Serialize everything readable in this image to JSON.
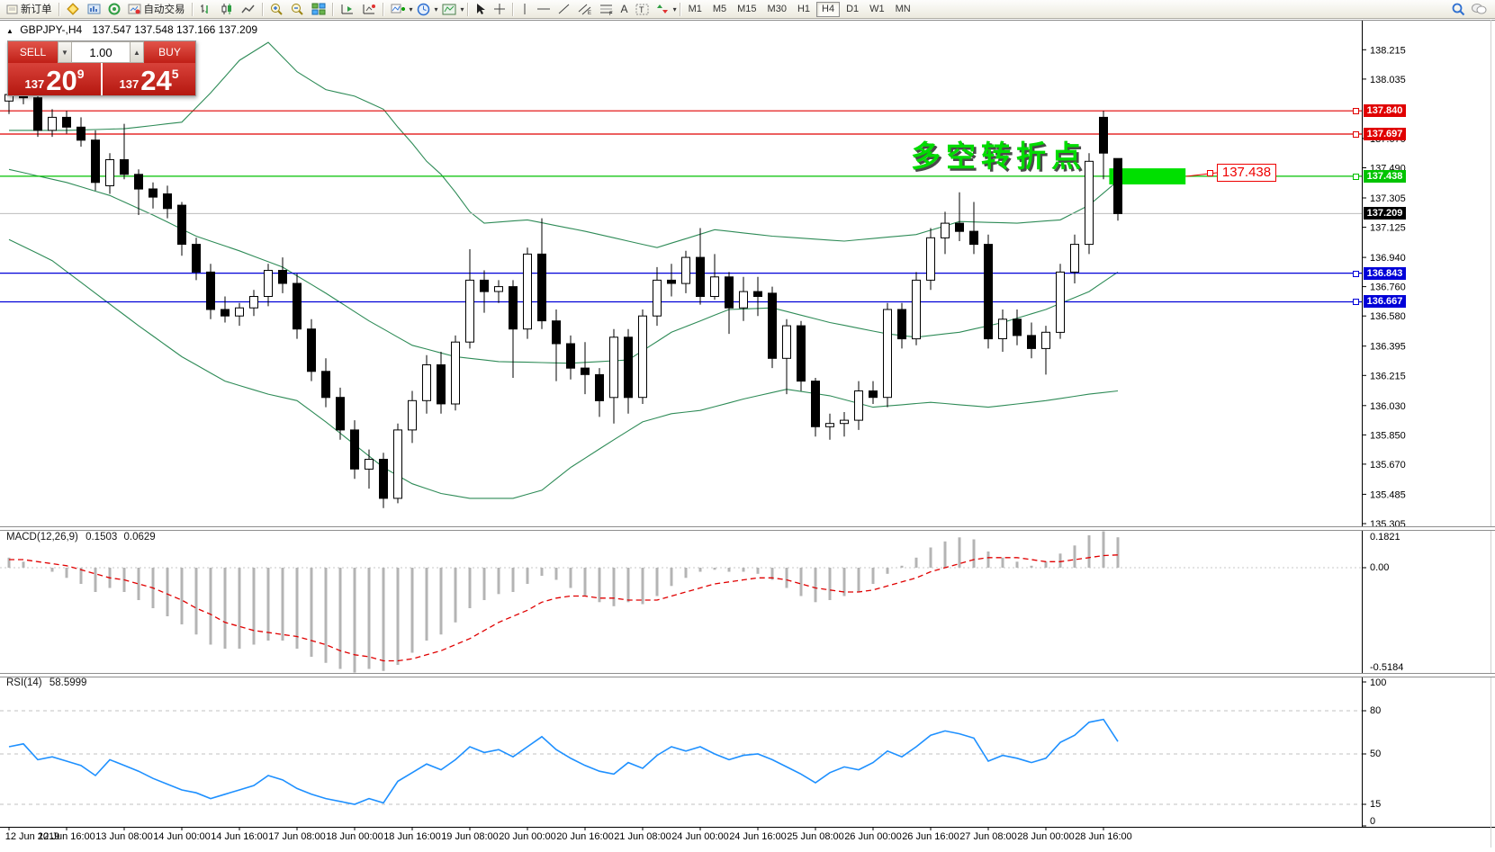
{
  "toolbar": {
    "new_order": "新订单",
    "auto_trading": "自动交易",
    "timeframes": [
      "M1",
      "M5",
      "M15",
      "M30",
      "H1",
      "H4",
      "D1",
      "W1",
      "MN"
    ],
    "active_timeframe": "H4"
  },
  "window": {
    "symbol_title": "GBPJPY-,H4",
    "ohlc_text": "137.547 137.548 137.166 137.209",
    "collapse_marker": "▲"
  },
  "trade_panel": {
    "sell_label": "SELL",
    "buy_label": "BUY",
    "volume": "1.00",
    "sell_price_prefix": "137",
    "sell_price_big": "20",
    "sell_price_sup": "9",
    "buy_price_prefix": "137",
    "buy_price_big": "24",
    "buy_price_sup": "5"
  },
  "annotation": {
    "text": "多空转折点",
    "color": "#00dc00"
  },
  "callout": {
    "text": "137.438",
    "color": "#ee0000"
  },
  "indicators": {
    "macd_label": "MACD(12,26,9)",
    "macd_main": "0.1503",
    "macd_signal": "0.0629",
    "rsi_label": "RSI(14)",
    "rsi_value": "58.5999"
  },
  "chart_data": {
    "type": "candlestick",
    "title": "GBPJPY-,H4",
    "ylim": [
      135.272,
      138.4
    ],
    "y_ticks": [
      "138.215",
      "138.035",
      "137.670",
      "137.490",
      "137.305",
      "137.125",
      "136.940",
      "136.760",
      "136.580",
      "136.395",
      "136.215",
      "136.030",
      "135.850",
      "135.670",
      "135.485",
      "135.305"
    ],
    "x_labels": [
      "12 Jun 2019",
      "12 Jun 16:00",
      "13 Jun 08:00",
      "14 Jun 00:00",
      "14 Jun 16:00",
      "17 Jun 08:00",
      "18 Jun 00:00",
      "18 Jun 16:00",
      "19 Jun 08:00",
      "20 Jun 00:00",
      "20 Jun 16:00",
      "21 Jun 08:00",
      "24 Jun 00:00",
      "24 Jun 16:00",
      "25 Jun 08:00",
      "26 Jun 00:00",
      "26 Jun 16:00",
      "27 Jun 08:00",
      "28 Jun 00:00",
      "28 Jun 16:00"
    ],
    "x_label_indices": [
      0,
      4,
      8,
      12,
      16,
      20,
      24,
      28,
      32,
      36,
      40,
      44,
      48,
      52,
      56,
      60,
      64,
      68,
      72,
      76
    ],
    "candles": [
      [
        137.9,
        137.98,
        137.82,
        137.94
      ],
      [
        137.94,
        138.05,
        137.88,
        137.92
      ],
      [
        137.92,
        138.08,
        137.68,
        137.72
      ],
      [
        137.72,
        137.85,
        137.68,
        137.8
      ],
      [
        137.8,
        137.84,
        137.7,
        137.74
      ],
      [
        137.74,
        137.8,
        137.62,
        137.66
      ],
      [
        137.66,
        137.72,
        137.35,
        137.4
      ],
      [
        137.38,
        137.58,
        137.33,
        137.54
      ],
      [
        137.54,
        137.76,
        137.42,
        137.45
      ],
      [
        137.45,
        137.48,
        137.2,
        137.36
      ],
      [
        137.36,
        137.4,
        137.24,
        137.31
      ],
      [
        137.33,
        137.38,
        137.18,
        137.24
      ],
      [
        137.26,
        137.28,
        136.95,
        137.02
      ],
      [
        137.02,
        137.06,
        136.8,
        136.85
      ],
      [
        136.85,
        136.9,
        136.56,
        136.62
      ],
      [
        136.62,
        136.7,
        136.54,
        136.58
      ],
      [
        136.58,
        136.66,
        136.52,
        136.63
      ],
      [
        136.63,
        136.74,
        136.58,
        136.7
      ],
      [
        136.7,
        136.9,
        136.64,
        136.86
      ],
      [
        136.86,
        136.94,
        136.72,
        136.78
      ],
      [
        136.78,
        136.84,
        136.44,
        136.5
      ],
      [
        136.5,
        136.56,
        136.18,
        136.24
      ],
      [
        136.24,
        136.32,
        136.02,
        136.08
      ],
      [
        136.08,
        136.14,
        135.82,
        135.88
      ],
      [
        135.88,
        135.94,
        135.58,
        135.64
      ],
      [
        135.64,
        135.76,
        135.52,
        135.7
      ],
      [
        135.7,
        135.74,
        135.4,
        135.46
      ],
      [
        135.46,
        135.92,
        135.43,
        135.88
      ],
      [
        135.88,
        136.12,
        135.8,
        136.06
      ],
      [
        136.06,
        136.34,
        135.98,
        136.28
      ],
      [
        136.28,
        136.36,
        135.98,
        136.04
      ],
      [
        136.04,
        136.46,
        136.0,
        136.42
      ],
      [
        136.42,
        136.99,
        136.38,
        136.8
      ],
      [
        136.8,
        136.86,
        136.6,
        136.73
      ],
      [
        136.73,
        136.8,
        136.66,
        136.76
      ],
      [
        136.76,
        136.8,
        136.2,
        136.5
      ],
      [
        136.5,
        137.0,
        136.44,
        136.96
      ],
      [
        136.96,
        137.18,
        136.5,
        136.55
      ],
      [
        136.55,
        136.62,
        136.18,
        136.41
      ],
      [
        136.41,
        136.46,
        136.19,
        136.26
      ],
      [
        136.26,
        136.42,
        136.1,
        136.22
      ],
      [
        136.22,
        136.26,
        135.96,
        136.06
      ],
      [
        136.08,
        136.5,
        135.92,
        136.45
      ],
      [
        136.45,
        136.5,
        135.98,
        136.08
      ],
      [
        136.08,
        136.62,
        136.04,
        136.58
      ],
      [
        136.58,
        136.88,
        136.52,
        136.8
      ],
      [
        136.8,
        136.9,
        136.7,
        136.78
      ],
      [
        136.78,
        136.98,
        136.72,
        136.94
      ],
      [
        136.94,
        137.12,
        136.65,
        136.7
      ],
      [
        136.7,
        136.96,
        136.68,
        136.82
      ],
      [
        136.82,
        136.85,
        136.47,
        136.63
      ],
      [
        136.63,
        136.82,
        136.55,
        136.73
      ],
      [
        136.73,
        136.82,
        136.58,
        136.7
      ],
      [
        136.72,
        136.76,
        136.26,
        136.32
      ],
      [
        136.32,
        136.56,
        136.1,
        136.52
      ],
      [
        136.52,
        136.55,
        136.12,
        136.18
      ],
      [
        136.18,
        136.2,
        135.84,
        135.9
      ],
      [
        135.9,
        135.98,
        135.82,
        135.92
      ],
      [
        135.92,
        135.99,
        135.84,
        135.94
      ],
      [
        135.94,
        136.18,
        135.88,
        136.12
      ],
      [
        136.12,
        136.18,
        136.04,
        136.08
      ],
      [
        136.08,
        136.66,
        136.02,
        136.62
      ],
      [
        136.62,
        136.66,
        136.38,
        136.44
      ],
      [
        136.44,
        136.85,
        136.4,
        136.8
      ],
      [
        136.8,
        137.12,
        136.74,
        137.06
      ],
      [
        137.06,
        137.22,
        136.96,
        137.15
      ],
      [
        137.15,
        137.34,
        137.04,
        137.1
      ],
      [
        137.1,
        137.28,
        136.96,
        137.02
      ],
      [
        137.02,
        137.08,
        136.38,
        136.44
      ],
      [
        136.44,
        136.62,
        136.36,
        136.56
      ],
      [
        136.56,
        136.62,
        136.4,
        136.46
      ],
      [
        136.46,
        136.54,
        136.32,
        136.38
      ],
      [
        136.38,
        136.52,
        136.22,
        136.48
      ],
      [
        136.48,
        136.9,
        136.44,
        136.85
      ],
      [
        136.85,
        137.08,
        136.78,
        137.02
      ],
      [
        137.02,
        137.58,
        136.96,
        137.53
      ],
      [
        137.8,
        137.84,
        137.42,
        137.58
      ],
      [
        137.547,
        137.548,
        137.166,
        137.209
      ]
    ],
    "bollinger": {
      "color": "#2E8B57",
      "upper": [
        [
          0,
          137.72
        ],
        [
          4,
          137.72
        ],
        [
          8,
          137.73
        ],
        [
          12,
          137.77
        ],
        [
          14,
          137.95
        ],
        [
          16,
          138.15
        ],
        [
          18,
          138.26
        ],
        [
          19,
          138.17
        ],
        [
          20,
          138.08
        ],
        [
          22,
          137.97
        ],
        [
          24,
          137.93
        ],
        [
          26,
          137.85
        ],
        [
          27,
          137.74
        ],
        [
          28,
          137.64
        ],
        [
          29,
          137.53
        ],
        [
          30,
          137.45
        ],
        [
          31,
          137.34
        ],
        [
          32,
          137.22
        ],
        [
          33,
          137.15
        ],
        [
          36,
          137.17
        ],
        [
          40,
          137.1
        ],
        [
          45,
          137.0
        ],
        [
          49,
          137.11
        ],
        [
          53,
          137.07
        ],
        [
          58,
          137.04
        ],
        [
          63,
          137.08
        ],
        [
          66,
          137.16
        ],
        [
          70,
          137.15
        ],
        [
          73,
          137.17
        ],
        [
          75,
          137.26
        ],
        [
          77,
          137.41
        ]
      ],
      "middle": [
        [
          0,
          137.48
        ],
        [
          4,
          137.4
        ],
        [
          7,
          137.32
        ],
        [
          10,
          137.2
        ],
        [
          13,
          137.07
        ],
        [
          16,
          136.98
        ],
        [
          19,
          136.88
        ],
        [
          22,
          136.72
        ],
        [
          25,
          136.55
        ],
        [
          28,
          136.4
        ],
        [
          31,
          136.33
        ],
        [
          34,
          136.3
        ],
        [
          39,
          136.29
        ],
        [
          43,
          136.31
        ],
        [
          46,
          136.48
        ],
        [
          50,
          136.62
        ],
        [
          53,
          136.63
        ],
        [
          57,
          136.54
        ],
        [
          61,
          136.47
        ],
        [
          63,
          136.45
        ],
        [
          66,
          136.48
        ],
        [
          69,
          136.54
        ],
        [
          72,
          136.62
        ],
        [
          75,
          136.73
        ],
        [
          77,
          136.85
        ]
      ],
      "lower": [
        [
          0,
          137.05
        ],
        [
          3,
          136.92
        ],
        [
          6,
          136.72
        ],
        [
          9,
          136.52
        ],
        [
          12,
          136.33
        ],
        [
          15,
          136.18
        ],
        [
          18,
          136.1
        ],
        [
          20,
          136.06
        ],
        [
          22,
          135.93
        ],
        [
          24,
          135.79
        ],
        [
          26,
          135.65
        ],
        [
          28,
          135.55
        ],
        [
          30,
          135.49
        ],
        [
          32,
          135.46
        ],
        [
          35,
          135.46
        ],
        [
          37,
          135.51
        ],
        [
          39,
          135.65
        ],
        [
          42,
          135.82
        ],
        [
          44,
          135.93
        ],
        [
          46,
          135.98
        ],
        [
          48,
          136.0
        ],
        [
          51,
          136.07
        ],
        [
          54,
          136.13
        ],
        [
          57,
          136.09
        ],
        [
          60,
          136.02
        ],
        [
          64,
          136.05
        ],
        [
          68,
          136.02
        ],
        [
          72,
          136.06
        ],
        [
          75,
          136.1
        ],
        [
          77,
          136.12
        ]
      ]
    },
    "hlines": [
      {
        "price": 137.84,
        "label": "137.840",
        "color": "#e00000"
      },
      {
        "price": 137.697,
        "label": "137.697",
        "color": "#e00000"
      },
      {
        "price": 137.438,
        "label": "137.438",
        "color": "#00c000"
      },
      {
        "price": 136.843,
        "label": "136.843",
        "color": "#0000d8"
      },
      {
        "price": 136.667,
        "label": "136.667",
        "color": "#0000d8"
      }
    ],
    "current_price": {
      "price": 137.209,
      "label": "137.209",
      "line_color": "#bdbdbd",
      "tag_color": "#000000"
    },
    "green_rect": {
      "i_start": 76.4,
      "i_end": 81.7,
      "price_top": 137.487,
      "price_bottom": 137.388,
      "color": "#00e000"
    },
    "macd": {
      "histogram_color": "#b4b4b4",
      "signal_color": "#e00000",
      "scale_labels": [
        "0.1821",
        "0.00",
        "-0.5184"
      ],
      "histogram": [
        0.05,
        0.03,
        0.0,
        -0.02,
        -0.05,
        -0.08,
        -0.12,
        -0.1,
        -0.12,
        -0.16,
        -0.2,
        -0.24,
        -0.28,
        -0.33,
        -0.38,
        -0.4,
        -0.4,
        -0.38,
        -0.36,
        -0.36,
        -0.4,
        -0.44,
        -0.47,
        -0.5,
        -0.5184,
        -0.5,
        -0.51,
        -0.48,
        -0.42,
        -0.36,
        -0.33,
        -0.27,
        -0.2,
        -0.16,
        -0.13,
        -0.12,
        -0.08,
        -0.04,
        -0.06,
        -0.1,
        -0.14,
        -0.17,
        -0.19,
        -0.17,
        -0.18,
        -0.14,
        -0.09,
        -0.05,
        -0.02,
        -0.01,
        -0.02,
        -0.02,
        -0.03,
        -0.06,
        -0.1,
        -0.14,
        -0.17,
        -0.16,
        -0.14,
        -0.12,
        -0.08,
        -0.03,
        0.01,
        0.05,
        0.1,
        0.13,
        0.15,
        0.14,
        0.08,
        0.05,
        0.03,
        0.01,
        0.03,
        0.07,
        0.11,
        0.16,
        0.18,
        0.1503
      ],
      "signal": [
        0.04,
        0.04,
        0.03,
        0.02,
        0.01,
        -0.01,
        -0.03,
        -0.05,
        -0.06,
        -0.08,
        -0.1,
        -0.13,
        -0.16,
        -0.2,
        -0.23,
        -0.27,
        -0.29,
        -0.31,
        -0.32,
        -0.33,
        -0.34,
        -0.36,
        -0.38,
        -0.41,
        -0.43,
        -0.44,
        -0.46,
        -0.46,
        -0.45,
        -0.43,
        -0.41,
        -0.38,
        -0.35,
        -0.31,
        -0.27,
        -0.24,
        -0.21,
        -0.17,
        -0.15,
        -0.14,
        -0.14,
        -0.15,
        -0.15,
        -0.16,
        -0.16,
        -0.16,
        -0.14,
        -0.12,
        -0.1,
        -0.08,
        -0.07,
        -0.06,
        -0.05,
        -0.05,
        -0.06,
        -0.08,
        -0.1,
        -0.11,
        -0.12,
        -0.12,
        -0.11,
        -0.09,
        -0.07,
        -0.05,
        -0.02,
        0.0,
        0.02,
        0.04,
        0.05,
        0.05,
        0.05,
        0.04,
        0.03,
        0.03,
        0.04,
        0.05,
        0.06,
        0.0629
      ]
    },
    "rsi": {
      "line_color": "#1e90ff",
      "levels": [
        80,
        50,
        15
      ],
      "bounds": [
        0,
        100
      ],
      "series": [
        55,
        57,
        46,
        48,
        45,
        42,
        35,
        46,
        42,
        38,
        33,
        29,
        25,
        23,
        19,
        22,
        25,
        28,
        35,
        32,
        26,
        22,
        19,
        17,
        15,
        19,
        16,
        31,
        37,
        43,
        39,
        46,
        55,
        51,
        53,
        48,
        55,
        62,
        53,
        47,
        42,
        38,
        36,
        44,
        40,
        49,
        55,
        52,
        55,
        50,
        46,
        49,
        50,
        46,
        41,
        36,
        30,
        37,
        41,
        39,
        44,
        52,
        48,
        55,
        63,
        66,
        64,
        61,
        45,
        49,
        47,
        44,
        47,
        58,
        63,
        72,
        74,
        58.6
      ]
    }
  }
}
